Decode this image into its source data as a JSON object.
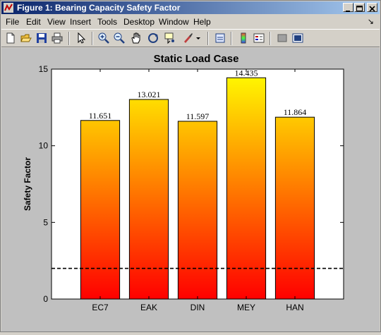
{
  "window": {
    "title": "Figure 1: Bearing Capacity Safety Factor"
  },
  "menu": {
    "items": [
      "File",
      "Edit",
      "View",
      "Insert",
      "Tools",
      "Desktop",
      "Window",
      "Help"
    ],
    "overflow_arrow": "↘"
  },
  "toolbar": {
    "icons": [
      "new-figure-icon",
      "open-file-icon",
      "save-icon",
      "print-icon",
      "edit-plot-arrow-icon",
      "zoom-in-icon",
      "zoom-out-icon",
      "pan-hand-icon",
      "rotate-3d-icon",
      "data-cursor-icon",
      "brush-icon",
      "link-plot-icon",
      "colorbar-icon",
      "legend-icon",
      "hide-plot-tools-icon",
      "show-plot-tools-icon"
    ]
  },
  "colors": {
    "bar_bottom": "#ff0000",
    "bar_top": "#ffff00",
    "figure_bg": "#c0c0c0",
    "axes_bg": "#ffffff",
    "title_bar": "#0a246a"
  },
  "chart_data": {
    "type": "bar",
    "title": "Static Load Case",
    "ylabel": "Safety Factor",
    "xlabel": "",
    "categories": [
      "EC7",
      "EAK",
      "DIN",
      "MEY",
      "HAN"
    ],
    "values": [
      11.651,
      13.021,
      11.597,
      14.435,
      11.864
    ],
    "value_labels": [
      "11.651",
      "13.021",
      "11.597",
      "14.435",
      "11.864"
    ],
    "ylim": [
      0,
      15
    ],
    "yticks": [
      "0",
      "5",
      "10",
      "15"
    ],
    "reference_line": {
      "value": 2,
      "style": "dashed"
    },
    "colormap": "autumn",
    "grid": false,
    "legend": "none"
  }
}
